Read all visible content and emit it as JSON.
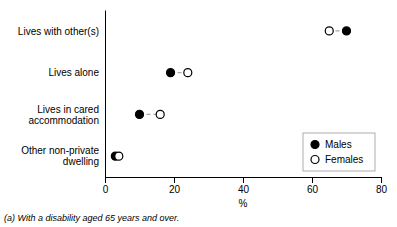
{
  "chart_data": {
    "type": "dumbbell",
    "orientation": "horizontal",
    "categories": [
      "Lives with other(s)",
      "Lives alone",
      "Lives in cared\naccommodation",
      "Other non-private\ndwelling"
    ],
    "series": [
      {
        "name": "Males",
        "color": "#000000",
        "marker": "circle",
        "values": [
          70,
          19,
          10,
          3
        ]
      },
      {
        "name": "Females",
        "color": "#000000",
        "marker": "circle-open",
        "values": [
          65,
          24,
          16,
          4
        ]
      }
    ],
    "color": "#aaaaaa",
    "line_style": "dashed",
    "xlabel": "%",
    "xlim": [
      0,
      80
    ],
    "xticks": [
      0,
      20,
      40,
      60,
      80
    ],
    "grid": false,
    "legend": "lower right",
    "annotations": [
      "(a) With a disability aged 65 years and over."
    ]
  }
}
